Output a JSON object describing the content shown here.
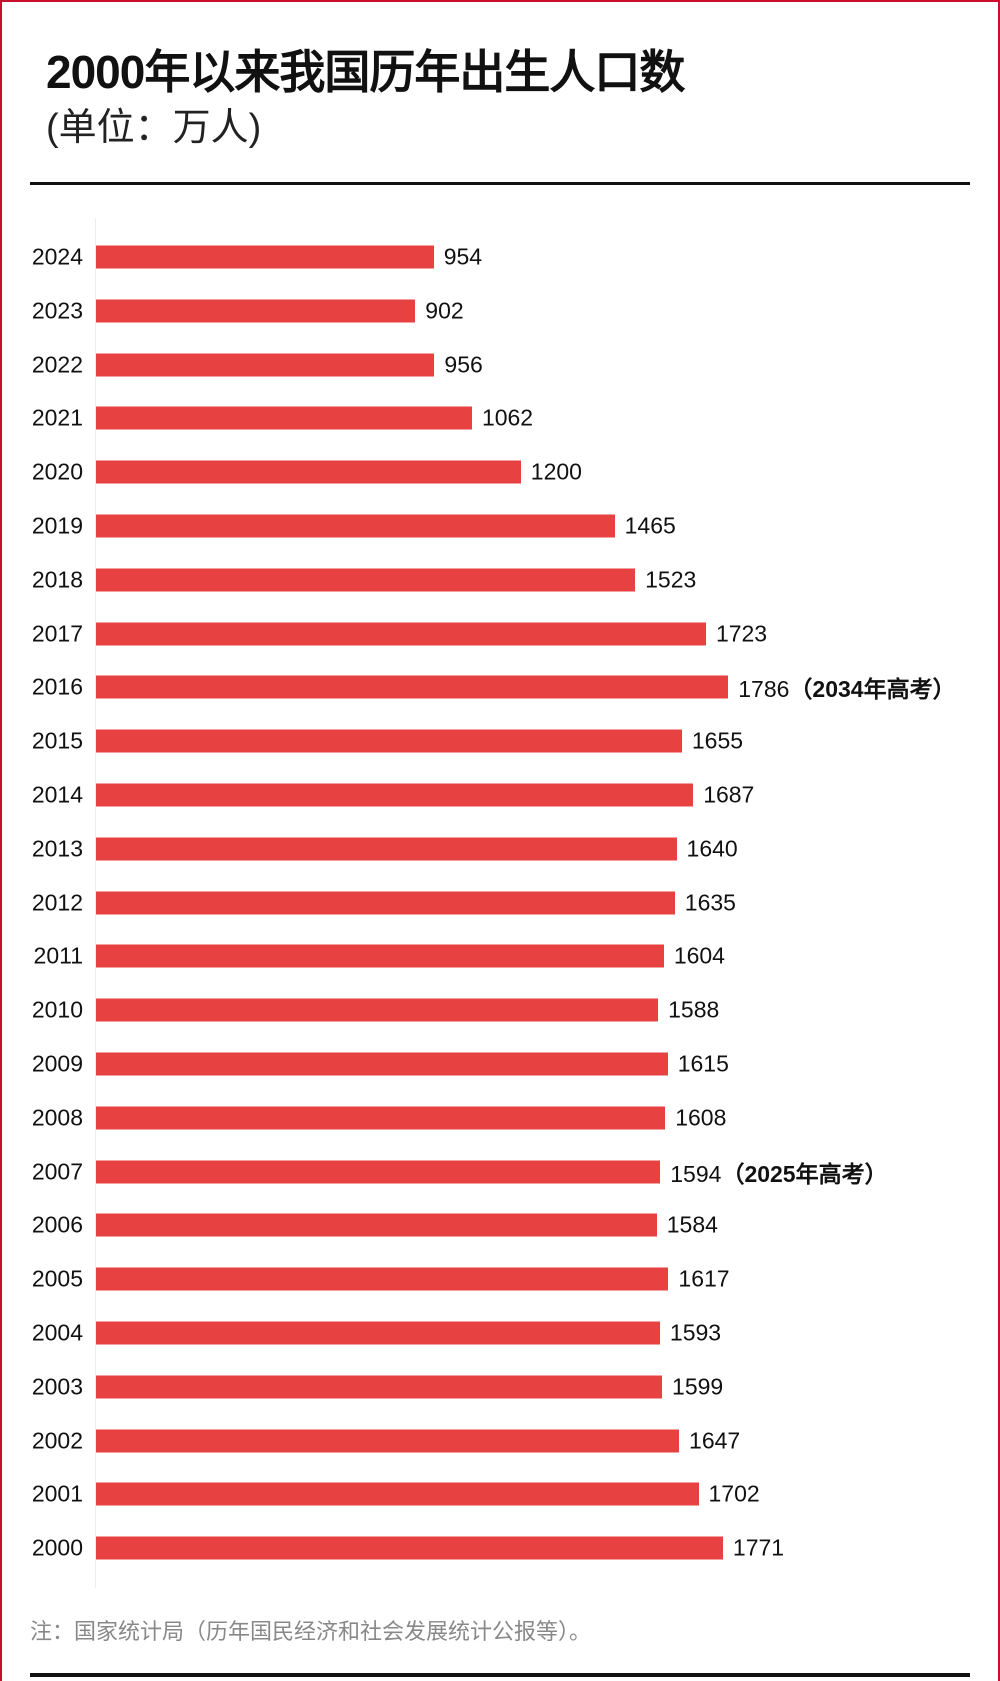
{
  "chart_data": {
    "type": "bar",
    "orientation": "horizontal",
    "title": "2000年以来我国历年出生人口数",
    "subtitle": "(单位：万人)",
    "categories": [
      "2024",
      "2023",
      "2022",
      "2021",
      "2020",
      "2019",
      "2018",
      "2017",
      "2016",
      "2015",
      "2014",
      "2013",
      "2012",
      "2011",
      "2010",
      "2009",
      "2008",
      "2007",
      "2006",
      "2005",
      "2004",
      "2003",
      "2002",
      "2001",
      "2000"
    ],
    "values": [
      954,
      902,
      956,
      1062,
      1200,
      1465,
      1523,
      1723,
      1786,
      1655,
      1687,
      1640,
      1635,
      1604,
      1588,
      1615,
      1608,
      1594,
      1584,
      1617,
      1593,
      1599,
      1647,
      1702,
      1771
    ],
    "annotations": [
      {
        "category": "2016",
        "text": "（2034年高考）"
      },
      {
        "category": "2007",
        "text": "（2025年高考）"
      }
    ],
    "bar_color": "#e84142",
    "grid": false,
    "xlim": [
      0,
      1900
    ],
    "footnote": "注：国家统计局（历年国民经济和社会发展统计公报等）。"
  }
}
